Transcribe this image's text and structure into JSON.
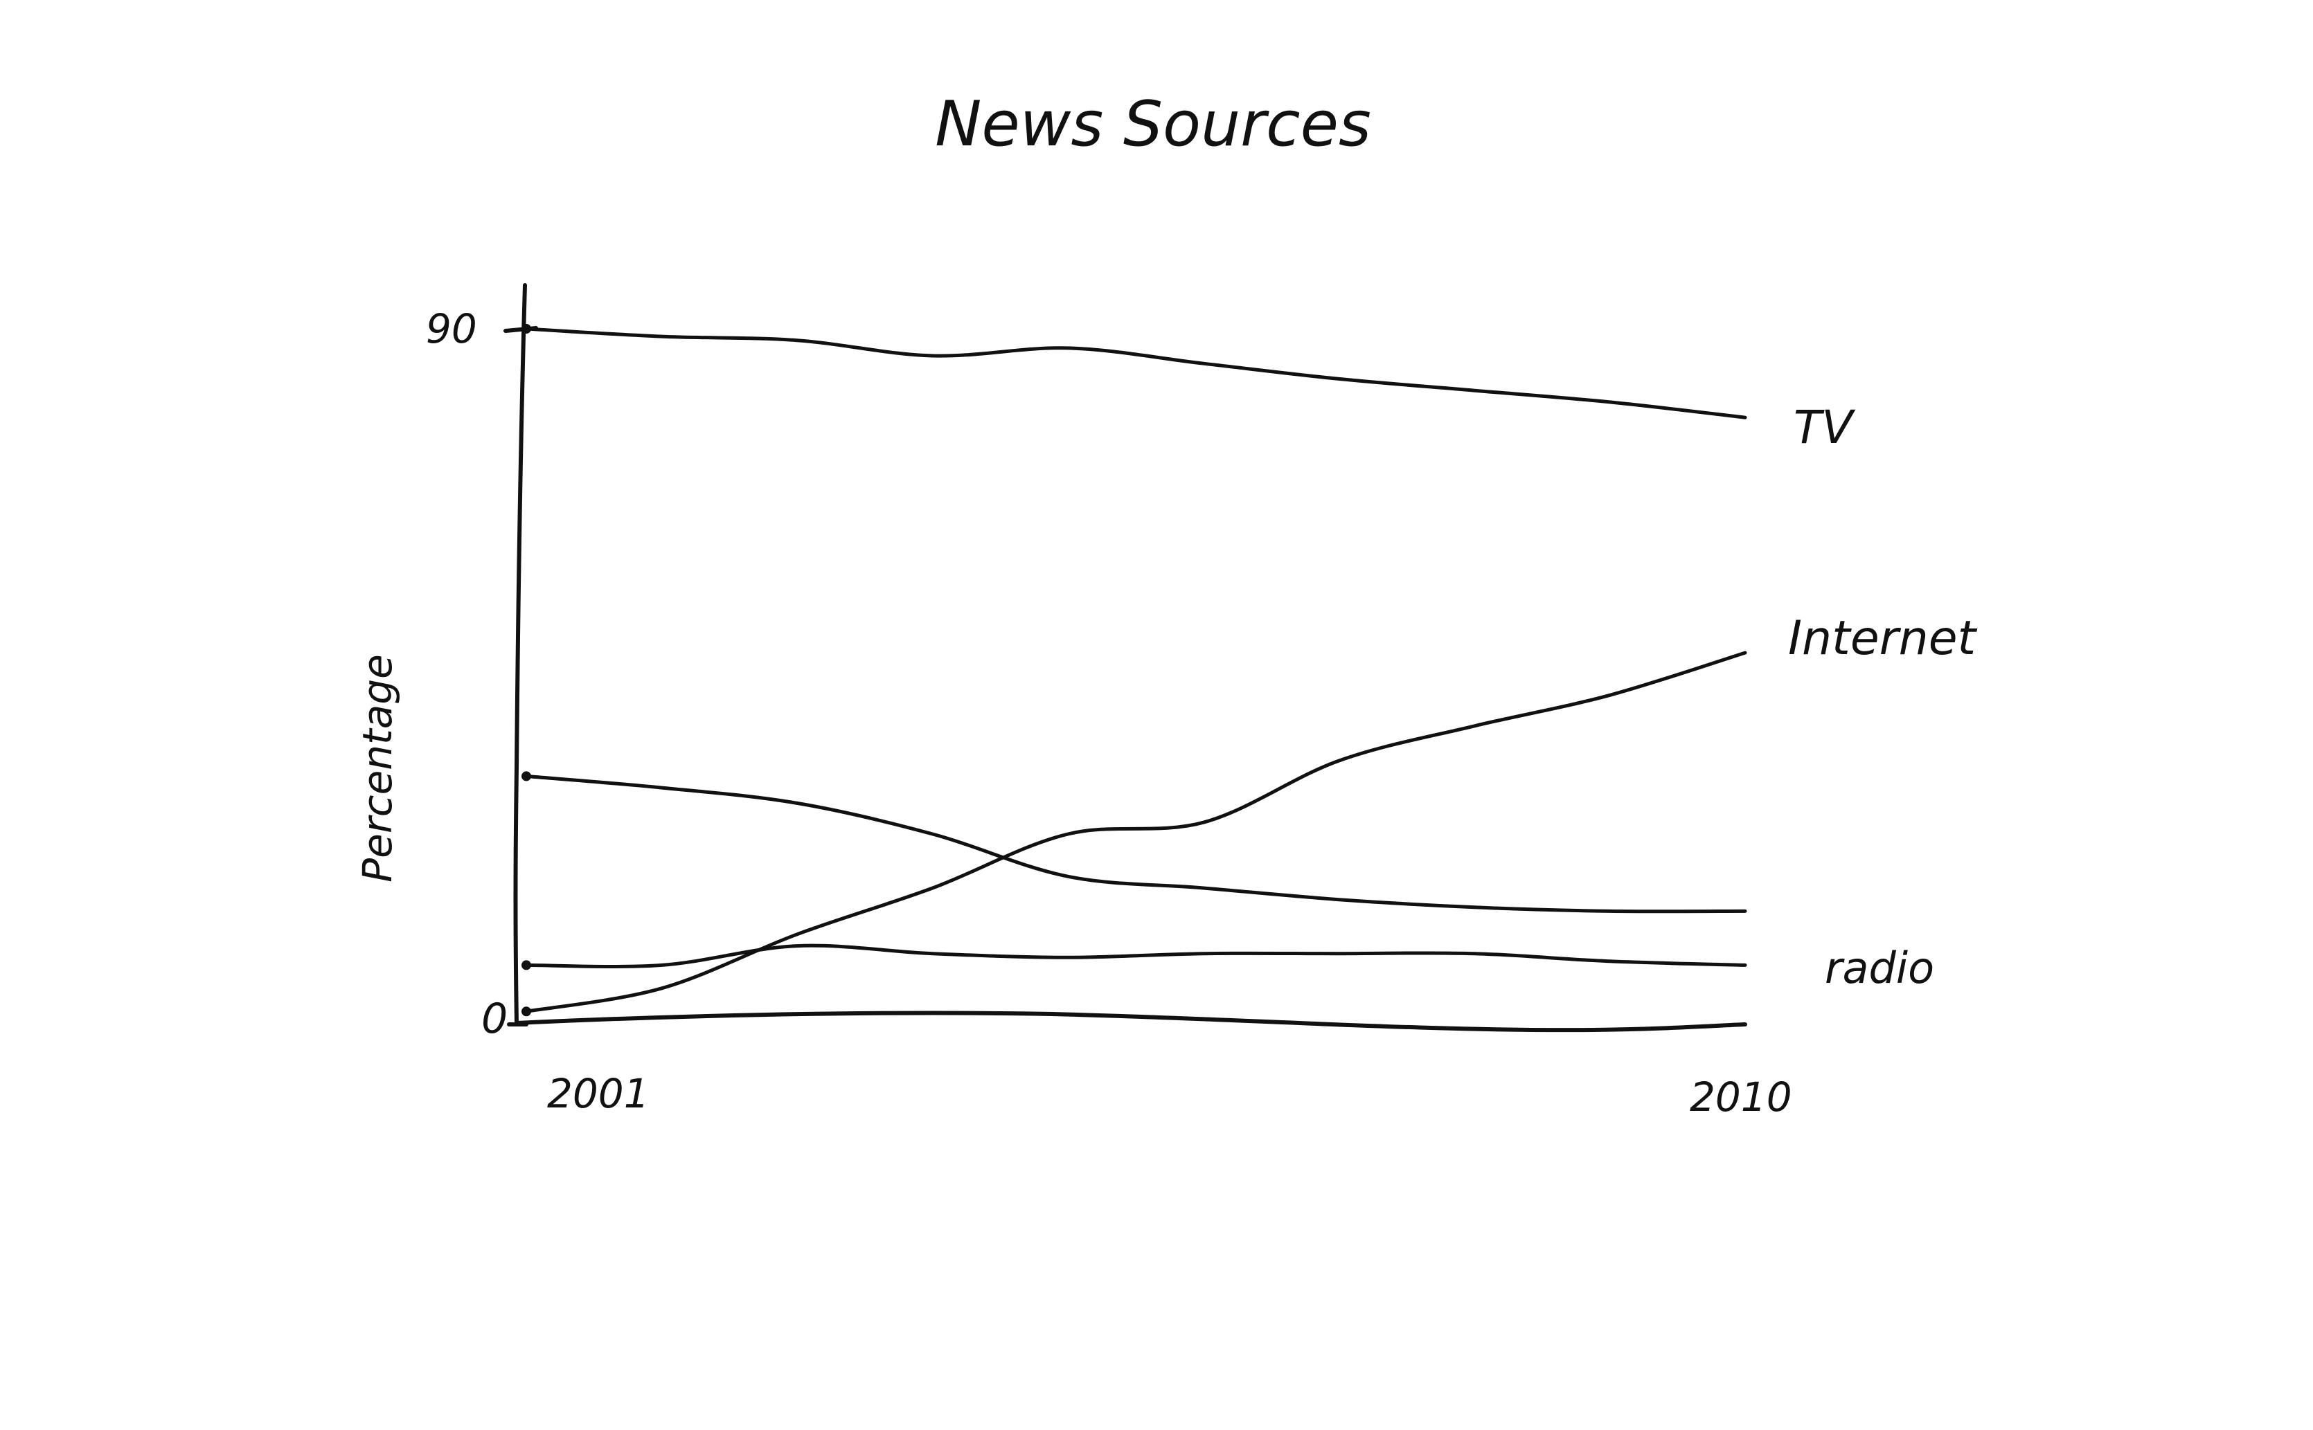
{
  "chart_data": {
    "type": "line",
    "title": "News Sources",
    "xlabel": "",
    "ylabel": "Percentage",
    "x": [
      2001,
      2002,
      2003,
      2004,
      2005,
      2006,
      2007,
      2008,
      2009,
      2010
    ],
    "x_tick_labels": [
      "2001",
      "2010"
    ],
    "y_tick_labels": [
      "0",
      "90"
    ],
    "xlim": [
      2001,
      2010
    ],
    "ylim": [
      0,
      90
    ],
    "grid": false,
    "legend": "none",
    "series": [
      {
        "name": "TV",
        "label_text": "TV",
        "values": [
          90,
          89,
          88.5,
          86.5,
          87.5,
          85.5,
          83.5,
          82,
          80.5,
          78.5
        ]
      },
      {
        "name": "Internet",
        "label_text": "Internet",
        "values": [
          1.5,
          4.5,
          11.5,
          17.5,
          24.5,
          26,
          34,
          38.5,
          42.5,
          48
        ]
      },
      {
        "name": "radio",
        "label_text": "radio",
        "values": [
          32,
          30.5,
          28.5,
          24.5,
          19,
          17.5,
          16,
          15,
          14.5,
          14.5
        ]
      },
      {
        "name": "",
        "label_text": "",
        "values": [
          7.5,
          7.5,
          10,
          9,
          8.5,
          9,
          9,
          9,
          8,
          7.5
        ]
      }
    ]
  }
}
